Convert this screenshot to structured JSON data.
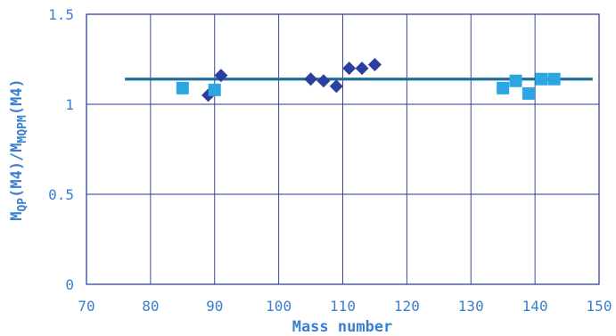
{
  "chart_data": {
    "type": "scatter",
    "xlabel": "Mass number",
    "ylabel_parts": {
      "m1": "M",
      "sub1": "QP",
      "mid": "(M4)/M",
      "sub2": "MQPM",
      "end": "(M4)"
    },
    "xlim": [
      70,
      150
    ],
    "ylim": [
      0,
      1.5
    ],
    "x_ticks": [
      "70",
      "80",
      "90",
      "100",
      "110",
      "120",
      "130",
      "140",
      "150"
    ],
    "y_ticks": [
      "0",
      "0.5",
      "1",
      "1.5"
    ],
    "grid": true,
    "legend": "none",
    "series": [
      {
        "marker": "diamond",
        "color": "#2b3f9e",
        "points": [
          {
            "x": 89,
            "y": 1.05
          },
          {
            "x": 91,
            "y": 1.16
          },
          {
            "x": 105,
            "y": 1.14
          },
          {
            "x": 107,
            "y": 1.13
          },
          {
            "x": 109,
            "y": 1.1
          },
          {
            "x": 111,
            "y": 1.2
          },
          {
            "x": 113,
            "y": 1.2
          },
          {
            "x": 115,
            "y": 1.22
          }
        ]
      },
      {
        "marker": "square",
        "color": "#2ba6e2",
        "points": [
          {
            "x": 85,
            "y": 1.09
          },
          {
            "x": 90,
            "y": 1.08
          },
          {
            "x": 135,
            "y": 1.09
          },
          {
            "x": 137,
            "y": 1.13
          },
          {
            "x": 139,
            "y": 1.06
          },
          {
            "x": 141,
            "y": 1.14
          },
          {
            "x": 143,
            "y": 1.14
          }
        ]
      }
    ],
    "reference_line": {
      "x_start": 76,
      "x_end": 149,
      "y": 1.14,
      "color": "#1f6e9a"
    }
  }
}
